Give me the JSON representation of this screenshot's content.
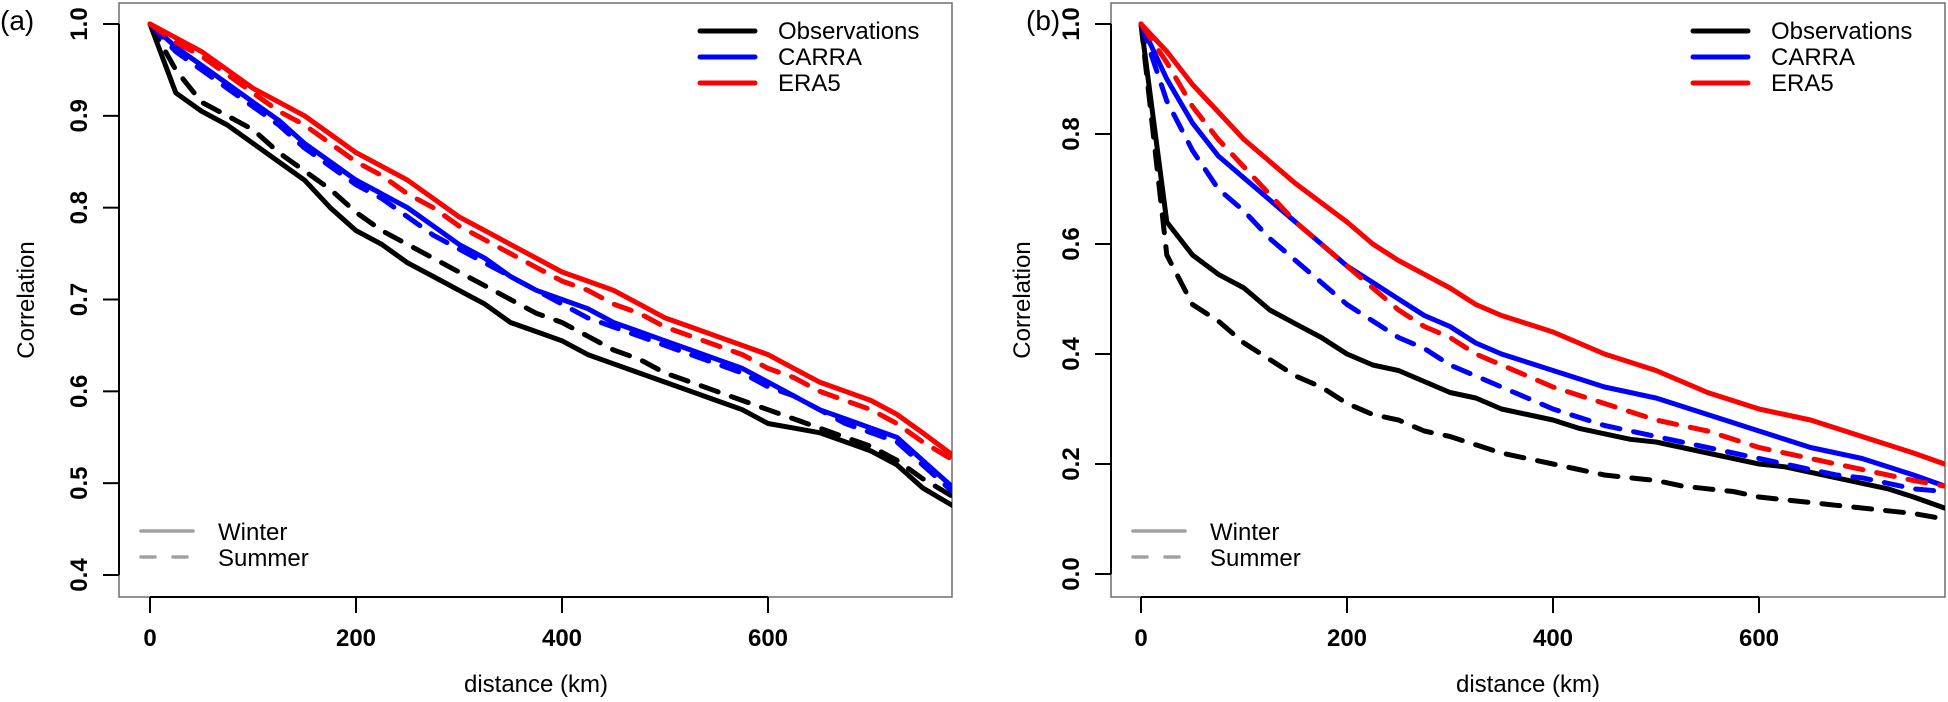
{
  "figure": {
    "style": {
      "obs_color": "#000000",
      "carra_color": "#0000ff",
      "era5_color": "#ff0000",
      "season_legend_color": "#a0a0a0"
    }
  },
  "chart_data": [
    {
      "type": "line",
      "panel_label": "(a)",
      "title": "",
      "xlabel": "distance (km)",
      "ylabel": "Correlation",
      "xlim": [
        -30,
        780
      ],
      "ylim": [
        0.38,
        1.02
      ],
      "xticks": [
        0,
        200,
        400,
        600
      ],
      "xtick_labels": [
        "0",
        "200",
        "400",
        "600"
      ],
      "yticks": [
        0.4,
        0.5,
        0.6,
        0.7,
        0.8,
        0.9,
        1.0
      ],
      "ytick_labels": [
        "0.4",
        "0.5",
        "0.6",
        "0.7",
        "0.8",
        "0.9",
        "1.0"
      ],
      "grid": false,
      "legend": {
        "placement": "top-right",
        "entries": [
          "Observations",
          "CARRA",
          "ERA5"
        ]
      },
      "season_legend": {
        "placement": "bottom-left",
        "entries": [
          "Winter",
          "Summer"
        ]
      },
      "x": [
        0,
        25,
        50,
        75,
        100,
        125,
        150,
        175,
        200,
        225,
        250,
        275,
        300,
        325,
        350,
        375,
        400,
        425,
        450,
        475,
        500,
        525,
        550,
        575,
        600,
        625,
        650,
        675,
        700,
        725,
        750,
        780
      ],
      "series": [
        {
          "name": "Observations",
          "season": "Winter",
          "color": "#000000",
          "dash": false,
          "values": [
            1.0,
            0.925,
            0.905,
            0.89,
            0.87,
            0.85,
            0.83,
            0.8,
            0.775,
            0.76,
            0.74,
            0.725,
            0.71,
            0.695,
            0.675,
            0.665,
            0.655,
            0.64,
            0.63,
            0.62,
            0.61,
            0.6,
            0.59,
            0.58,
            0.565,
            0.56,
            0.555,
            0.545,
            0.535,
            0.52,
            0.495,
            0.475
          ]
        },
        {
          "name": "Observations",
          "season": "Summer",
          "color": "#000000",
          "dash": true,
          "values": [
            1.0,
            0.95,
            0.915,
            0.9,
            0.885,
            0.86,
            0.84,
            0.82,
            0.795,
            0.775,
            0.76,
            0.745,
            0.73,
            0.715,
            0.7,
            0.685,
            0.675,
            0.66,
            0.645,
            0.635,
            0.62,
            0.61,
            0.6,
            0.59,
            0.58,
            0.57,
            0.56,
            0.55,
            0.54,
            0.525,
            0.505,
            0.485
          ]
        },
        {
          "name": "CARRA",
          "season": "Winter",
          "color": "#0000ff",
          "dash": false,
          "values": [
            1.0,
            0.975,
            0.955,
            0.935,
            0.915,
            0.895,
            0.87,
            0.85,
            0.83,
            0.815,
            0.8,
            0.78,
            0.76,
            0.745,
            0.725,
            0.71,
            0.7,
            0.69,
            0.675,
            0.665,
            0.655,
            0.645,
            0.635,
            0.625,
            0.61,
            0.595,
            0.58,
            0.57,
            0.56,
            0.55,
            0.525,
            0.495
          ]
        },
        {
          "name": "CARRA",
          "season": "Summer",
          "color": "#0000ff",
          "dash": true,
          "values": [
            1.0,
            0.97,
            0.95,
            0.93,
            0.91,
            0.89,
            0.865,
            0.845,
            0.825,
            0.81,
            0.79,
            0.77,
            0.755,
            0.74,
            0.725,
            0.71,
            0.695,
            0.68,
            0.67,
            0.66,
            0.65,
            0.64,
            0.63,
            0.62,
            0.605,
            0.595,
            0.58,
            0.565,
            0.555,
            0.545,
            0.52,
            0.49
          ]
        },
        {
          "name": "ERA5",
          "season": "Winter",
          "color": "#ff0000",
          "dash": false,
          "values": [
            1.0,
            0.985,
            0.97,
            0.95,
            0.93,
            0.915,
            0.9,
            0.88,
            0.86,
            0.845,
            0.83,
            0.81,
            0.79,
            0.775,
            0.76,
            0.745,
            0.73,
            0.72,
            0.71,
            0.695,
            0.68,
            0.67,
            0.66,
            0.65,
            0.64,
            0.625,
            0.61,
            0.6,
            0.59,
            0.575,
            0.555,
            0.53
          ]
        },
        {
          "name": "ERA5",
          "season": "Summer",
          "color": "#ff0000",
          "dash": true,
          "values": [
            1.0,
            0.98,
            0.965,
            0.945,
            0.925,
            0.905,
            0.89,
            0.87,
            0.85,
            0.835,
            0.815,
            0.8,
            0.78,
            0.765,
            0.75,
            0.735,
            0.72,
            0.71,
            0.695,
            0.685,
            0.67,
            0.66,
            0.65,
            0.64,
            0.625,
            0.615,
            0.6,
            0.59,
            0.58,
            0.565,
            0.545,
            0.525
          ]
        }
      ]
    },
    {
      "type": "line",
      "panel_label": "(b)",
      "title": "",
      "xlabel": "distance (km)",
      "ylabel": "Correlation",
      "xlim": [
        -30,
        780
      ],
      "ylim": [
        -0.04,
        1.02
      ],
      "xticks": [
        0,
        200,
        400,
        600
      ],
      "xtick_labels": [
        "0",
        "200",
        "400",
        "600"
      ],
      "yticks": [
        0.0,
        0.2,
        0.4,
        0.6,
        0.8,
        1.0
      ],
      "ytick_labels": [
        "0.0",
        "0.2",
        "0.4",
        "0.6",
        "0.8",
        "1.0"
      ],
      "grid": false,
      "legend": {
        "placement": "top-right",
        "entries": [
          "Observations",
          "CARRA",
          "ERA5"
        ]
      },
      "season_legend": {
        "placement": "bottom-left",
        "entries": [
          "Winter",
          "Summer"
        ]
      },
      "x": [
        0,
        25,
        50,
        75,
        100,
        125,
        150,
        175,
        200,
        225,
        250,
        275,
        300,
        325,
        350,
        375,
        400,
        425,
        450,
        475,
        500,
        525,
        550,
        575,
        600,
        625,
        650,
        675,
        700,
        725,
        750,
        780
      ],
      "series": [
        {
          "name": "Observations",
          "season": "Winter",
          "color": "#000000",
          "dash": false,
          "values": [
            1.0,
            0.64,
            0.58,
            0.545,
            0.52,
            0.48,
            0.455,
            0.43,
            0.4,
            0.38,
            0.37,
            0.35,
            0.33,
            0.32,
            0.3,
            0.29,
            0.28,
            0.265,
            0.255,
            0.245,
            0.24,
            0.23,
            0.22,
            0.21,
            0.2,
            0.195,
            0.185,
            0.175,
            0.165,
            0.155,
            0.14,
            0.12
          ]
        },
        {
          "name": "Observations",
          "season": "Summer",
          "color": "#000000",
          "dash": true,
          "values": [
            1.0,
            0.58,
            0.49,
            0.46,
            0.42,
            0.39,
            0.36,
            0.34,
            0.31,
            0.29,
            0.28,
            0.26,
            0.25,
            0.235,
            0.22,
            0.21,
            0.2,
            0.19,
            0.18,
            0.175,
            0.17,
            0.16,
            0.155,
            0.15,
            0.14,
            0.135,
            0.13,
            0.125,
            0.12,
            0.115,
            0.11,
            0.1
          ]
        },
        {
          "name": "CARRA",
          "season": "Winter",
          "color": "#0000ff",
          "dash": false,
          "values": [
            1.0,
            0.9,
            0.82,
            0.76,
            0.72,
            0.68,
            0.64,
            0.6,
            0.56,
            0.53,
            0.5,
            0.47,
            0.45,
            0.42,
            0.4,
            0.385,
            0.37,
            0.355,
            0.34,
            0.33,
            0.32,
            0.305,
            0.29,
            0.275,
            0.26,
            0.245,
            0.23,
            0.22,
            0.21,
            0.195,
            0.18,
            0.16
          ]
        },
        {
          "name": "CARRA",
          "season": "Summer",
          "color": "#0000ff",
          "dash": true,
          "values": [
            1.0,
            0.86,
            0.77,
            0.7,
            0.66,
            0.61,
            0.57,
            0.53,
            0.49,
            0.46,
            0.43,
            0.41,
            0.38,
            0.36,
            0.34,
            0.32,
            0.3,
            0.285,
            0.27,
            0.26,
            0.25,
            0.24,
            0.23,
            0.22,
            0.21,
            0.2,
            0.19,
            0.18,
            0.175,
            0.165,
            0.155,
            0.15
          ]
        },
        {
          "name": "ERA5",
          "season": "Winter",
          "color": "#ff0000",
          "dash": false,
          "values": [
            1.0,
            0.95,
            0.89,
            0.84,
            0.79,
            0.75,
            0.71,
            0.675,
            0.64,
            0.6,
            0.57,
            0.545,
            0.52,
            0.49,
            0.47,
            0.455,
            0.44,
            0.42,
            0.4,
            0.385,
            0.37,
            0.35,
            0.33,
            0.315,
            0.3,
            0.29,
            0.28,
            0.265,
            0.25,
            0.235,
            0.22,
            0.2
          ]
        },
        {
          "name": "ERA5",
          "season": "Summer",
          "color": "#ff0000",
          "dash": true,
          "values": [
            1.0,
            0.93,
            0.85,
            0.79,
            0.74,
            0.69,
            0.64,
            0.6,
            0.56,
            0.52,
            0.48,
            0.45,
            0.43,
            0.4,
            0.38,
            0.36,
            0.34,
            0.325,
            0.31,
            0.295,
            0.28,
            0.27,
            0.26,
            0.245,
            0.23,
            0.22,
            0.21,
            0.2,
            0.19,
            0.18,
            0.17,
            0.16
          ]
        }
      ]
    }
  ]
}
